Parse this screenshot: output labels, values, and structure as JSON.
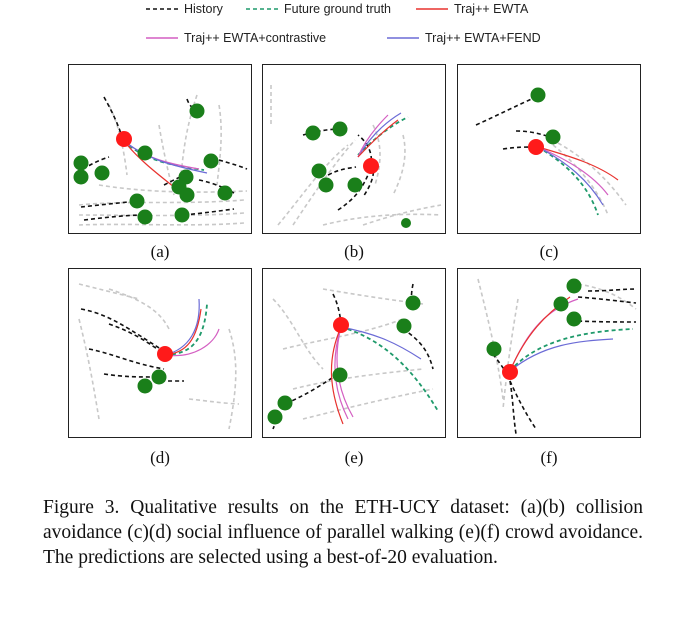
{
  "legend": {
    "items": [
      {
        "label": "History",
        "color": "#111111",
        "style": "dashed"
      },
      {
        "label": "Future ground truth",
        "color": "#1f9a6b",
        "style": "dashed"
      },
      {
        "label": "Traj++ EWTA",
        "color": "#e8322e",
        "style": "solid"
      },
      {
        "label": "Traj++ EWTA+contrastive",
        "color": "#d45fc2",
        "style": "solid"
      },
      {
        "label": "Traj++ EWTA+FEND",
        "color": "#6b6bd6",
        "style": "solid"
      }
    ]
  },
  "panels": [
    {
      "label": "(a)"
    },
    {
      "label": "(b)"
    },
    {
      "label": "(c)"
    },
    {
      "label": "(d)"
    },
    {
      "label": "(e)"
    },
    {
      "label": "(f)"
    }
  ],
  "caption": "Figure 3. Qualitative results on the ETH-UCY dataset: (a)(b) collision avoidance (c)(d) social influence of parallel walking (e)(f) crowd avoidance. The predictions are selected using a best-of-20 evaluation."
}
